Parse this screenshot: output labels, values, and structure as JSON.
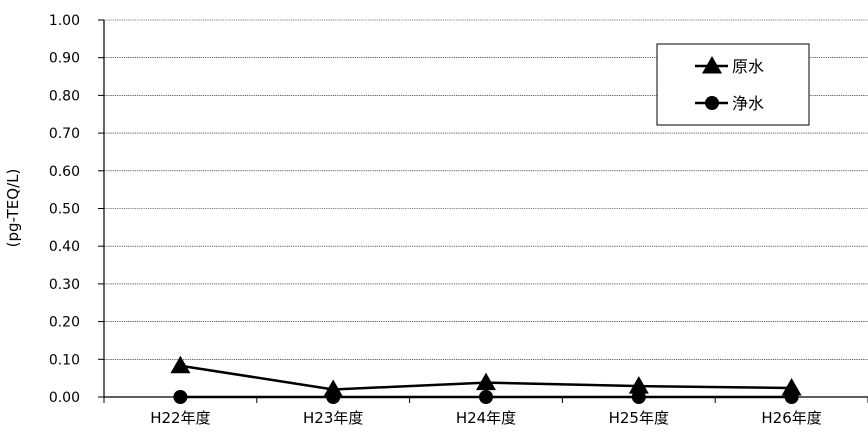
{
  "chart_data": {
    "type": "line",
    "title": "",
    "xlabel": "",
    "ylabel": "(pg-TEQ/L)",
    "categories": [
      "H22年度",
      "H23年度",
      "H24年度",
      "H25年度",
      "H26年度"
    ],
    "ylim": [
      0,
      1.0
    ],
    "yticks": [
      "0.00",
      "0.10",
      "0.20",
      "0.30",
      "0.40",
      "0.50",
      "0.60",
      "0.70",
      "0.80",
      "0.90",
      "1.00"
    ],
    "grid": true,
    "legend_position": "top-right",
    "series": [
      {
        "name": "原水",
        "marker": "triangle",
        "color": "#000000",
        "values": [
          0.083,
          0.02,
          0.038,
          0.029,
          0.024
        ]
      },
      {
        "name": "浄水",
        "marker": "circle",
        "color": "#000000",
        "values": [
          0.0,
          0.0,
          0.0,
          0.0,
          0.0
        ]
      }
    ]
  }
}
